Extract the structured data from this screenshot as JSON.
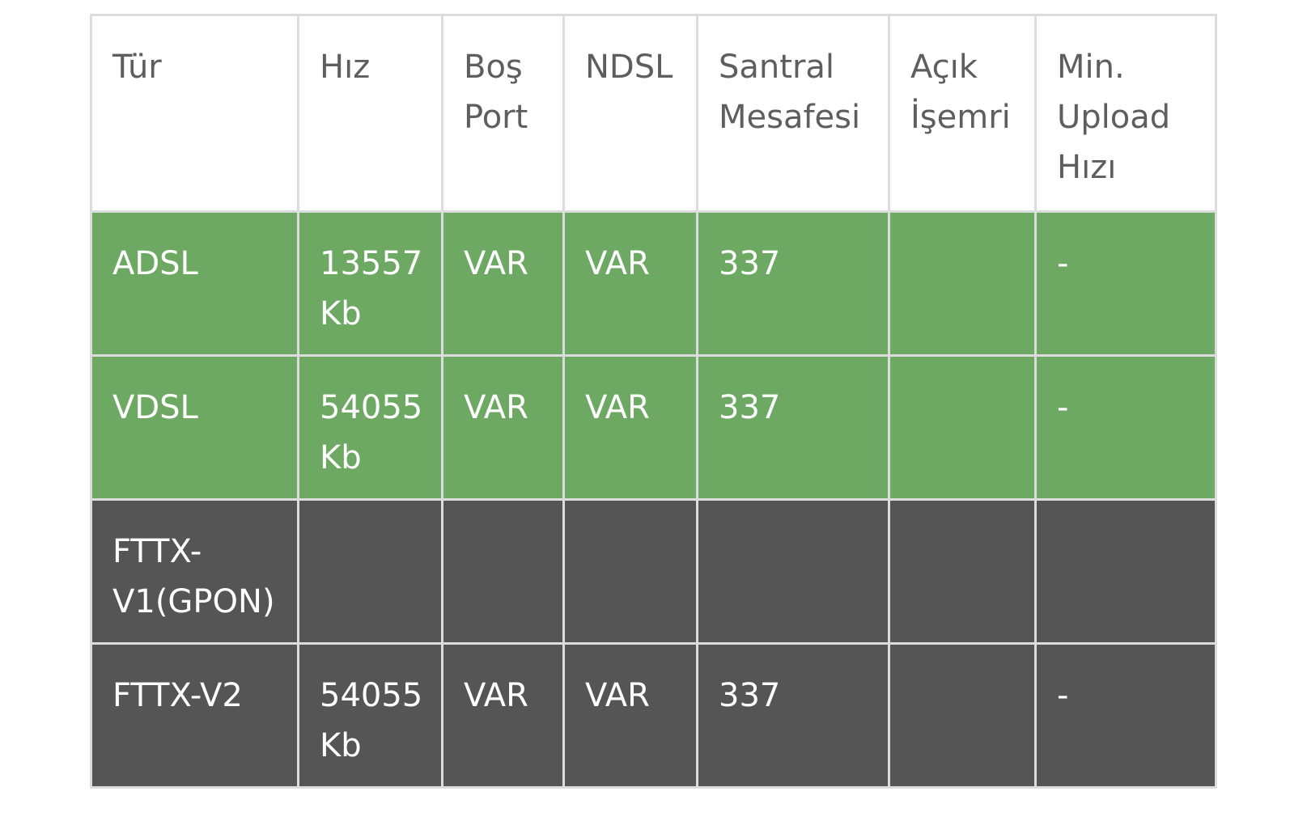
{
  "colors": {
    "header_bg": "#ffffff",
    "header_text": "#5e5e5e",
    "available_row_bg": "#6ea964",
    "unavailable_row_bg": "#555555",
    "row_text": "#ffffff",
    "grid_line": "#dcdcdc"
  },
  "table": {
    "headers": [
      "Tür",
      "Hız",
      "Boş\nPort",
      "NDSL",
      "Santral\nMesafesi",
      "Açık\nİşemri",
      "Min.\nUpload\nHızı"
    ],
    "rows": [
      {
        "status": "available",
        "cells": [
          "ADSL",
          "13557\nKb",
          "VAR",
          "VAR",
          "337",
          "",
          "-"
        ]
      },
      {
        "status": "available",
        "cells": [
          "VDSL",
          "54055\nKb",
          "VAR",
          "VAR",
          "337",
          "",
          "-"
        ]
      },
      {
        "status": "unavailable",
        "cells": [
          "FTTX-\nV1(GPON)",
          "",
          "",
          "",
          "",
          "",
          ""
        ]
      },
      {
        "status": "unavailable",
        "cells": [
          "FTTX-V2",
          "54055\nKb",
          "VAR",
          "VAR",
          "337",
          "",
          "-"
        ]
      }
    ]
  }
}
